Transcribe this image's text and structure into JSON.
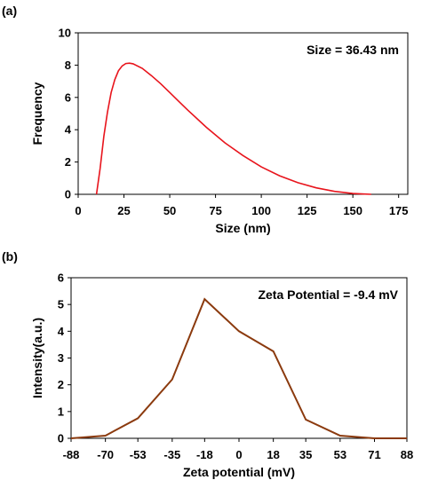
{
  "chart_data": [
    {
      "panel_label": "(a)",
      "type": "line",
      "xlabel": "Size (nm)",
      "ylabel": "Frequency",
      "annotation": "Size = 36.43 nm",
      "xlim": [
        0,
        180
      ],
      "ylim": [
        0,
        10
      ],
      "xticks": [
        "0",
        "25",
        "50",
        "75",
        "100",
        "125",
        "150",
        "175"
      ],
      "xtick_values": [
        0,
        25,
        50,
        75,
        100,
        125,
        150,
        175
      ],
      "yticks": [
        "0",
        "2",
        "4",
        "6",
        "8",
        "10"
      ],
      "ytick_values": [
        0,
        2,
        4,
        6,
        8,
        10
      ],
      "grid": false,
      "line_color": "#e8141c",
      "series": [
        {
          "x": [
            10,
            12,
            14,
            16,
            18,
            20,
            22,
            24,
            26,
            28,
            30,
            35,
            40,
            45,
            50,
            55,
            60,
            70,
            80,
            90,
            100,
            110,
            120,
            130,
            140,
            150,
            155,
            160
          ],
          "y": [
            0.0,
            1.6,
            3.6,
            5.1,
            6.3,
            7.1,
            7.65,
            7.95,
            8.1,
            8.12,
            8.08,
            7.8,
            7.35,
            6.85,
            6.3,
            5.75,
            5.2,
            4.15,
            3.2,
            2.4,
            1.7,
            1.15,
            0.72,
            0.4,
            0.18,
            0.05,
            0.02,
            0.0
          ]
        }
      ]
    },
    {
      "panel_label": "(b)",
      "type": "line",
      "xlabel": "Zeta potential (mV)",
      "ylabel": "Intensity(a.u.)",
      "annotation": "Zeta Potential = -9.4 mV",
      "xlim": [
        -88,
        88
      ],
      "ylim": [
        0,
        6
      ],
      "xticks": [
        "-88",
        "-70",
        "-53",
        "-35",
        "-18",
        "0",
        "18",
        "35",
        "53",
        "71",
        "88"
      ],
      "xtick_values": [
        -88,
        -70,
        -53,
        -35,
        -18,
        0,
        18,
        35,
        53,
        71,
        88
      ],
      "yticks": [
        "0",
        "1",
        "2",
        "3",
        "4",
        "5",
        "6"
      ],
      "ytick_values": [
        0,
        1,
        2,
        3,
        4,
        5,
        6
      ],
      "grid": false,
      "line_color": "#8b3a0e",
      "series": [
        {
          "x": [
            -88,
            -70,
            -53,
            -35,
            -18,
            0,
            18,
            35,
            53,
            71,
            88
          ],
          "y": [
            0.0,
            0.1,
            0.75,
            2.2,
            5.2,
            4.0,
            3.25,
            0.7,
            0.1,
            0.0,
            0.0
          ]
        }
      ]
    }
  ]
}
